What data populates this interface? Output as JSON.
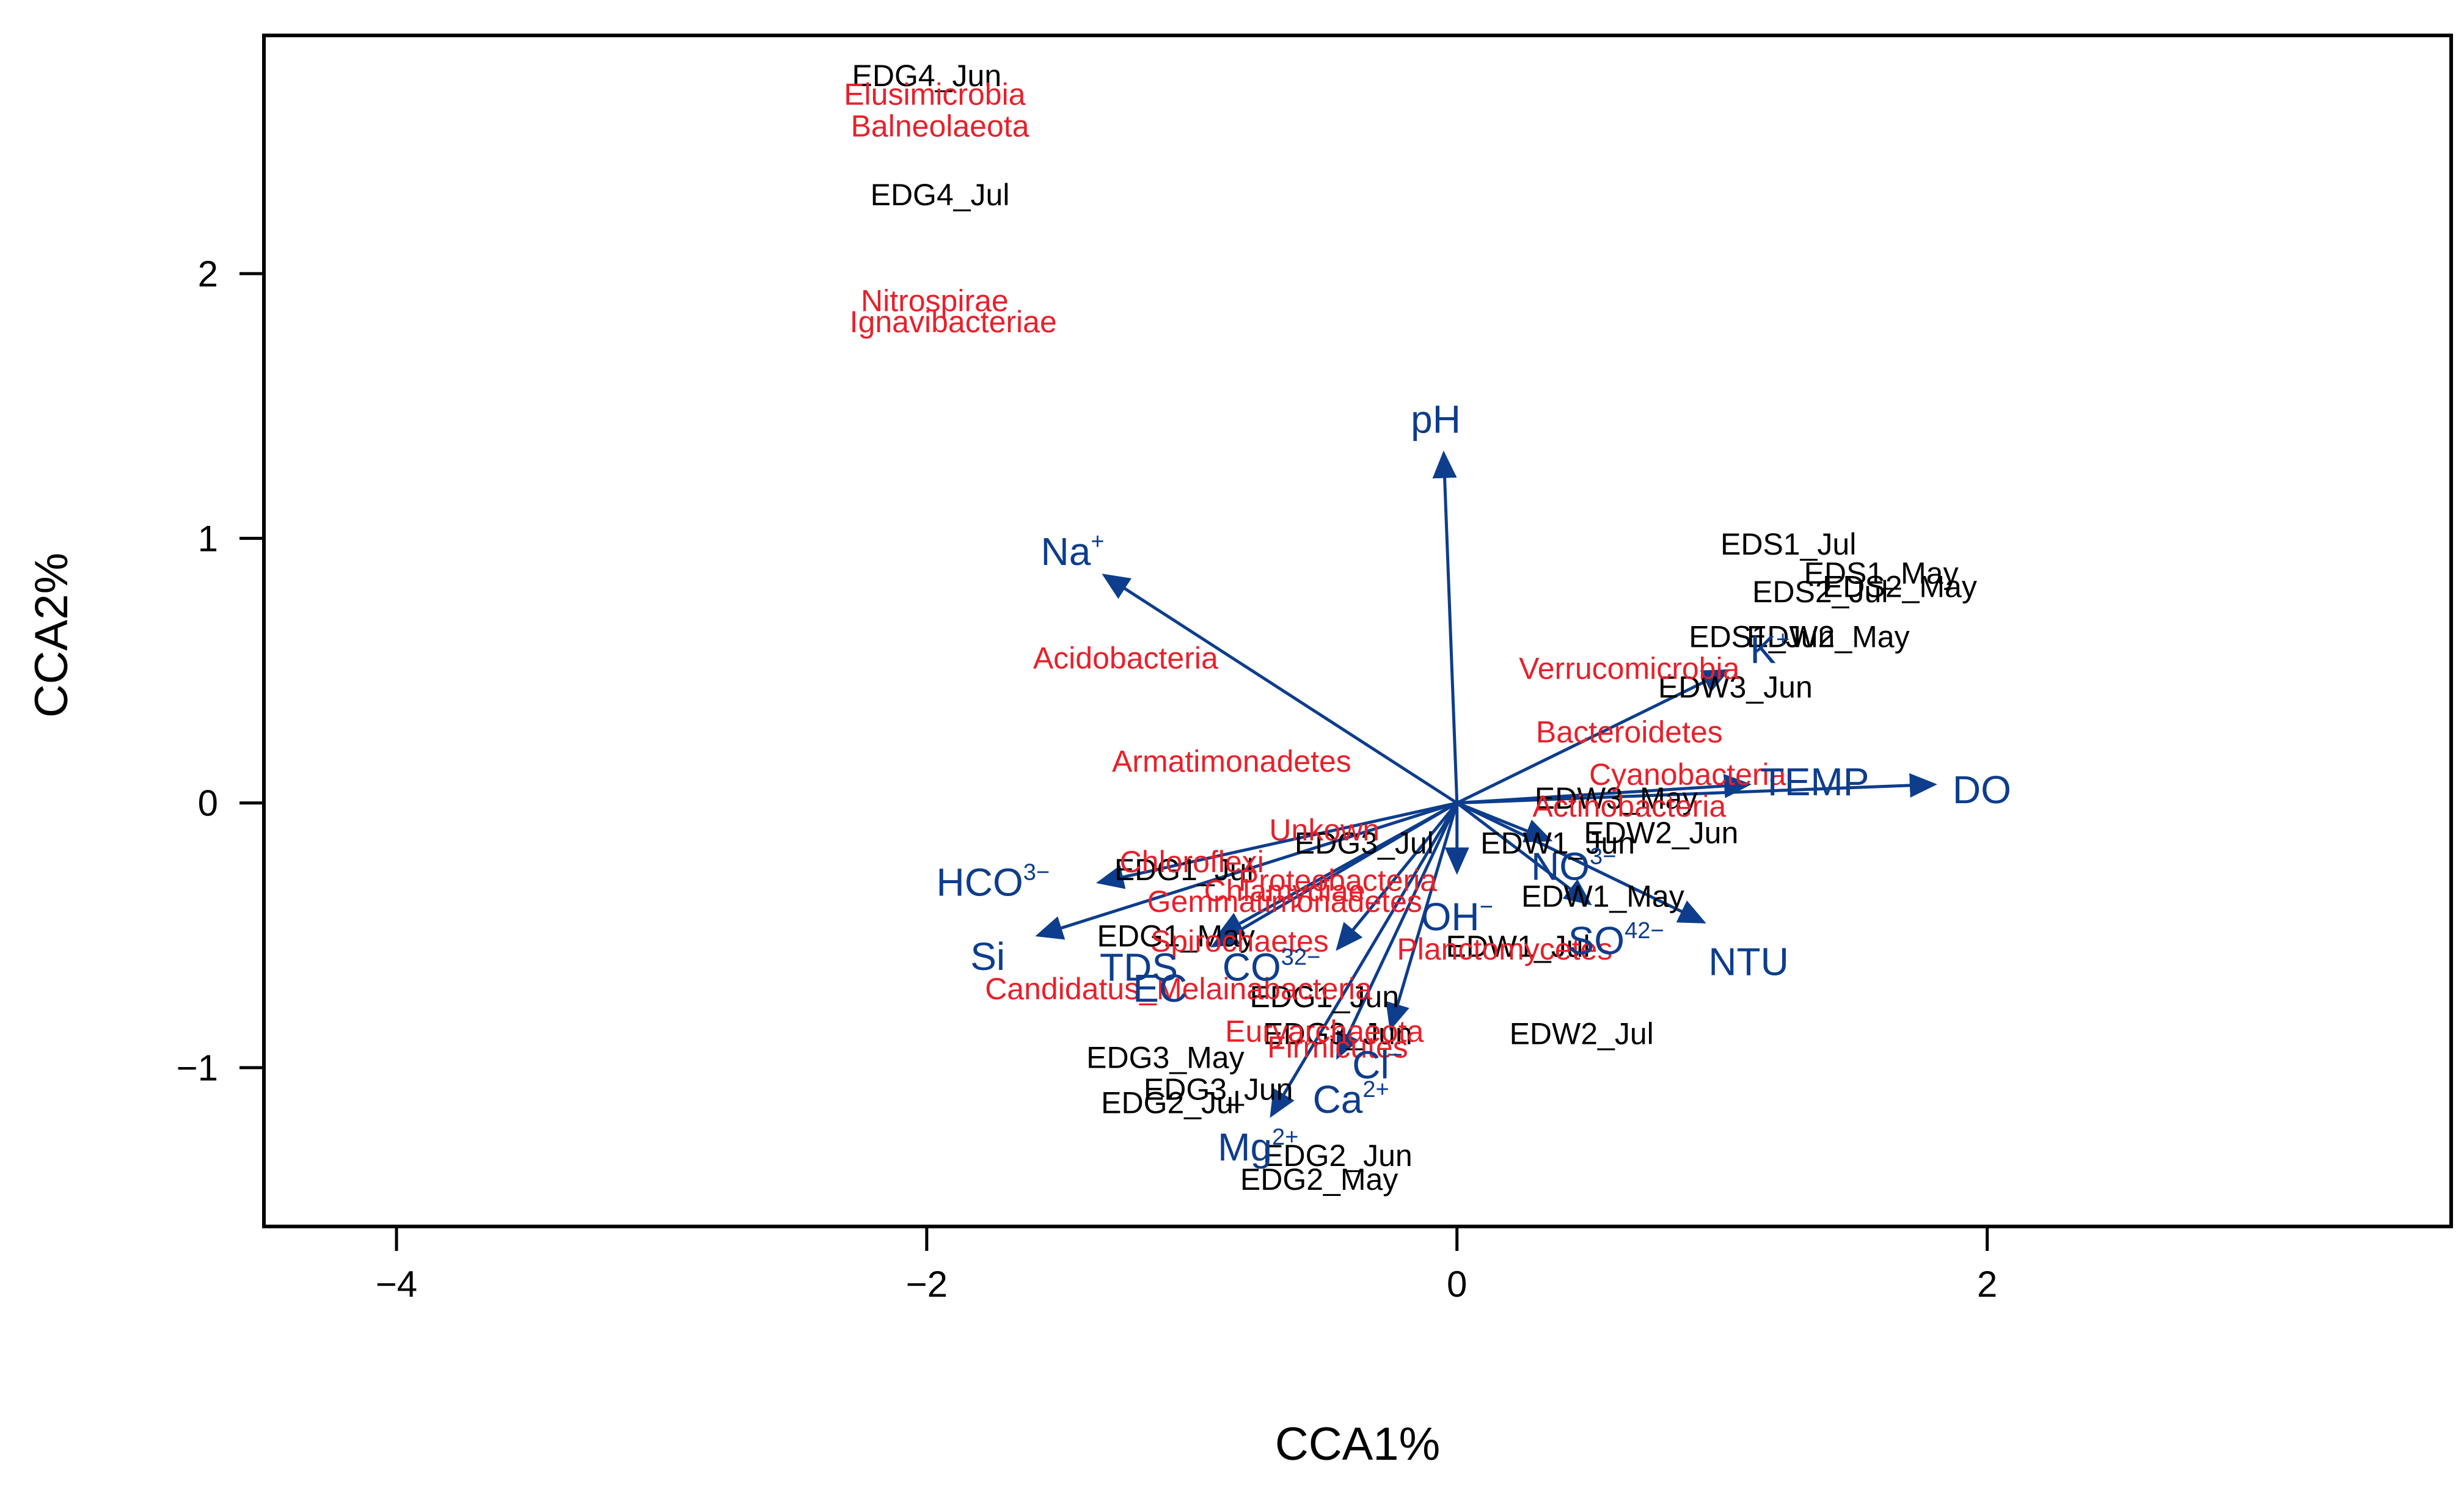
{
  "chart_data": {
    "type": "scatter",
    "xlabel": "CCA1%",
    "ylabel": "CCA2%",
    "xlim": [
      -4.5,
      3.75
    ],
    "ylim": [
      -1.6,
      2.9
    ],
    "xticks": [
      "−4",
      "−2",
      "0",
      "2"
    ],
    "xtick_values": [
      -4,
      -2,
      0,
      2
    ],
    "yticks": [
      "−1",
      "0",
      "1",
      "2"
    ],
    "ytick_values": [
      -1,
      0,
      1,
      2
    ],
    "colors": {
      "sites": "#000000",
      "taxa": "#e8202a",
      "env": "#0d3d8c",
      "frame": "#000000"
    },
    "sites": [
      {
        "name": "EDG4_Jun",
        "x": -2.0,
        "y": 2.75
      },
      {
        "name": "EDG4_Jul",
        "x": -1.95,
        "y": 2.3
      },
      {
        "name": "EDS1_Jul",
        "x": 1.25,
        "y": 0.98
      },
      {
        "name": "EDS1_May",
        "x": 1.6,
        "y": 0.87
      },
      {
        "name": "EDS2_Jul",
        "x": 1.37,
        "y": 0.8
      },
      {
        "name": "EDS2_May",
        "x": 1.67,
        "y": 0.82
      },
      {
        "name": "EDS1_Jun",
        "x": 1.15,
        "y": 0.63
      },
      {
        "name": "EDW2_May",
        "x": 1.4,
        "y": 0.63
      },
      {
        "name": "EDW3_Jun",
        "x": 1.05,
        "y": 0.44
      },
      {
        "name": "EDW3_May",
        "x": 0.6,
        "y": 0.02
      },
      {
        "name": "EDW2_Jun",
        "x": 0.77,
        "y": -0.11
      },
      {
        "name": "EDW1_Jun",
        "x": 0.38,
        "y": -0.15
      },
      {
        "name": "EDW1_May",
        "x": 0.55,
        "y": -0.35
      },
      {
        "name": "EDW1_Jul",
        "x": 0.23,
        "y": -0.54
      },
      {
        "name": "EDW2_Jul",
        "x": 0.47,
        "y": -0.87
      },
      {
        "name": "EDG3_Jul",
        "x": -0.35,
        "y": -0.15
      },
      {
        "name": "EDG1_Jul",
        "x": -1.03,
        "y": -0.25
      },
      {
        "name": "EDG1_May",
        "x": -1.06,
        "y": -0.5
      },
      {
        "name": "EDG1_Jun",
        "x": -0.5,
        "y": -0.73
      },
      {
        "name": "EDG3_Jun",
        "x": -0.45,
        "y": -0.87
      },
      {
        "name": "EDG3_May",
        "x": -1.1,
        "y": -0.96
      },
      {
        "name": "EDG3_Jun",
        "x": -0.9,
        "y": -1.08
      },
      {
        "name": "EDG2_Jul",
        "x": -1.08,
        "y": -1.13
      },
      {
        "name": "EDG2_Jun",
        "x": -0.45,
        "y": -1.33
      },
      {
        "name": "EDG2_May",
        "x": -0.52,
        "y": -1.42
      }
    ],
    "taxa": [
      {
        "name": "Elusimicrobia",
        "x": -1.97,
        "y": 2.68
      },
      {
        "name": "Balneolaeota",
        "x": -1.95,
        "y": 2.56
      },
      {
        "name": "Nitrospirae",
        "x": -1.97,
        "y": 1.9
      },
      {
        "name": "Ignavibacteriae",
        "x": -1.9,
        "y": 1.82
      },
      {
        "name": "Acidobacteria",
        "x": -1.25,
        "y": 0.55
      },
      {
        "name": "Verrucomicrobia",
        "x": 0.65,
        "y": 0.51
      },
      {
        "name": "Bacteroidetes",
        "x": 0.65,
        "y": 0.27
      },
      {
        "name": "Armatimonadetes",
        "x": -0.85,
        "y": 0.16
      },
      {
        "name": "Cyanobacteria",
        "x": 0.87,
        "y": 0.11
      },
      {
        "name": "Actinobacteria",
        "x": 0.65,
        "y": -0.01
      },
      {
        "name": "Unkown",
        "x": -0.5,
        "y": -0.1
      },
      {
        "name": "Chloroflexi",
        "x": -1.0,
        "y": -0.22
      },
      {
        "name": "Proteobacteria",
        "x": -0.45,
        "y": -0.29
      },
      {
        "name": "Chlamydiae",
        "x": -0.65,
        "y": -0.33
      },
      {
        "name": "Gemmatimonadetes",
        "x": -0.65,
        "y": -0.37
      },
      {
        "name": "Spirochaetes",
        "x": -0.82,
        "y": -0.52
      },
      {
        "name": "Planctomycetes",
        "x": 0.18,
        "y": -0.55
      },
      {
        "name": "Candidatus_Melainabacteria",
        "x": -1.05,
        "y": -0.7
      },
      {
        "name": "Euryarchaeota",
        "x": -0.5,
        "y": -0.86
      },
      {
        "name": "Firmicutes",
        "x": -0.45,
        "y": -0.92
      }
    ],
    "env": [
      {
        "name": "pH",
        "sup": "",
        "x": -0.05,
        "y": 1.32,
        "label_x": -0.08,
        "label_y": 1.45
      },
      {
        "name": "Na",
        "sup": "+",
        "x": -1.33,
        "y": 0.86,
        "label_x": -1.45,
        "label_y": 0.95
      },
      {
        "name": "TEMP",
        "sup": "",
        "x": 1.1,
        "y": 0.07,
        "label_x": 1.35,
        "label_y": 0.08
      },
      {
        "name": "DO",
        "sup": "",
        "x": 1.8,
        "y": 0.07,
        "label_x": 1.98,
        "label_y": 0.05
      },
      {
        "name": "K",
        "sup": "+",
        "x": 1.02,
        "y": 0.5,
        "label_x": 1.18,
        "label_y": 0.58
      },
      {
        "name": "HCO",
        "sup": "3−",
        "x": -1.35,
        "y": -0.3,
        "label_x": -1.75,
        "label_y": -0.3
      },
      {
        "name": "Si",
        "sup": "",
        "x": -1.58,
        "y": -0.5,
        "label_x": -1.77,
        "label_y": -0.58
      },
      {
        "name": "TDS",
        "sup": "",
        "x": -0.9,
        "y": -0.5,
        "label_x": -1.2,
        "label_y": -0.62
      },
      {
        "name": "EC",
        "sup": "",
        "x": -0.92,
        "y": -0.54,
        "label_x": -1.12,
        "label_y": -0.7
      },
      {
        "name": "CO",
        "sup": "32−",
        "x": -0.45,
        "y": -0.55,
        "label_x": -0.7,
        "label_y": -0.62
      },
      {
        "name": "OH",
        "sup": "−",
        "x": 0.0,
        "y": -0.26,
        "label_x": 0.0,
        "label_y": -0.43
      },
      {
        "name": "NO",
        "sup": "3−",
        "x": 0.35,
        "y": -0.14,
        "label_x": 0.44,
        "label_y": -0.24
      },
      {
        "name": "SO",
        "sup": "42−",
        "x": 0.5,
        "y": -0.38,
        "label_x": 0.6,
        "label_y": -0.52
      },
      {
        "name": "NTU",
        "sup": "",
        "x": 0.93,
        "y": -0.45,
        "label_x": 1.1,
        "label_y": -0.6
      },
      {
        "name": "Cl",
        "sup": "−",
        "x": -0.25,
        "y": -0.85,
        "label_x": -0.3,
        "label_y": -0.99
      },
      {
        "name": "Ca",
        "sup": "2+",
        "x": -0.45,
        "y": -0.96,
        "label_x": -0.4,
        "label_y": -1.12
      },
      {
        "name": "Mg",
        "sup": "2+",
        "x": -0.7,
        "y": -1.18,
        "label_x": -0.75,
        "label_y": -1.3
      }
    ]
  }
}
